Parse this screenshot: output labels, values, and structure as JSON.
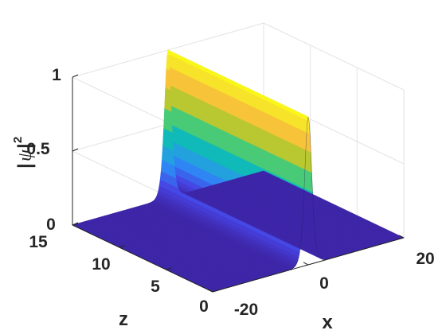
{
  "chart_data": {
    "type": "surface",
    "surface": "|psi|^2 = sech^2(x) (soliton, constant along z)",
    "x_range": [
      -20,
      20
    ],
    "z_range": [
      0,
      15
    ],
    "value_range": [
      0,
      1
    ],
    "peak_value": 1,
    "xlabel": "x",
    "ylabel": "z",
    "zlabel": "|ψ|²",
    "x_ticks": [
      "-20",
      "0",
      "20"
    ],
    "y_ticks": [
      "0",
      "5",
      "10",
      "15"
    ],
    "z_ticks": [
      "0",
      "0.5",
      "1"
    ],
    "grid": true,
    "colormap": "parula",
    "colormap_stops": [
      "#3e26a8",
      "#4743e3",
      "#2f82f6",
      "#21a6da",
      "#0cbfb0",
      "#4ecb71",
      "#aec92f",
      "#f7b93c",
      "#f6d833",
      "#f9fb15"
    ]
  }
}
